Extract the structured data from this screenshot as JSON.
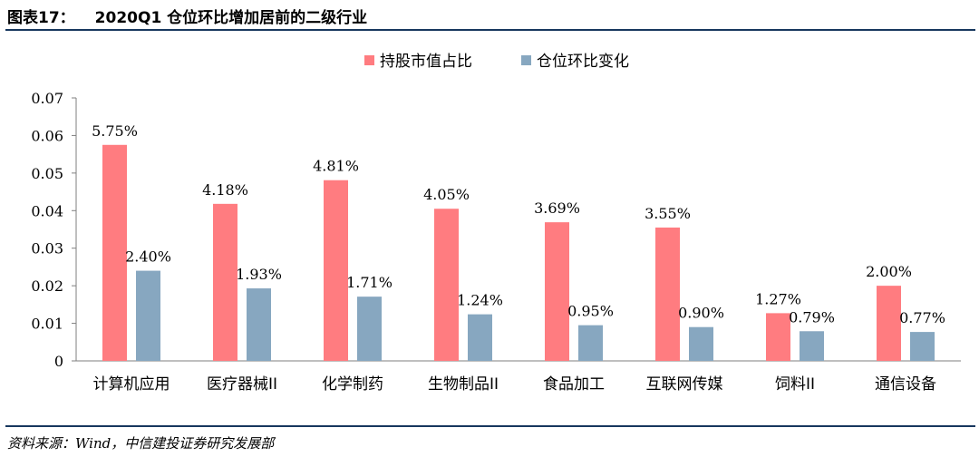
{
  "header": {
    "figure_no": "图表17：",
    "title": "2020Q1 仓位环比增加居前的二级行业"
  },
  "footer": {
    "source": "资料来源：Wind，中信建投证券研究发展部"
  },
  "colors": {
    "series1": "#ff7c80",
    "series2": "#87a7c0",
    "rule": "#17375e",
    "axis": "#7f7f7f"
  },
  "chart_data": {
    "type": "bar",
    "title": "",
    "xlabel": "",
    "ylabel": "",
    "categories": [
      "计算机应用",
      "医疗器械II",
      "化学制药",
      "生物制品II",
      "食品加工",
      "互联网传媒",
      "饲料II",
      "通信设备"
    ],
    "series": [
      {
        "name": "持股市值占比",
        "values": [
          0.0575,
          0.0418,
          0.0481,
          0.0405,
          0.0369,
          0.0355,
          0.0127,
          0.02
        ],
        "data_labels": [
          "5.75%",
          "4.18%",
          "4.81%",
          "4.05%",
          "3.69%",
          "3.55%",
          "1.27%",
          "2.00%"
        ]
      },
      {
        "name": "仓位环比变化",
        "values": [
          0.024,
          0.0193,
          0.0171,
          0.0124,
          0.0095,
          0.009,
          0.0079,
          0.0077
        ],
        "data_labels": [
          "2.40%",
          "1.93%",
          "1.71%",
          "1.24%",
          "0.95%",
          "0.90%",
          "0.79%",
          "0.77%"
        ]
      }
    ],
    "ylim": [
      0,
      0.07
    ],
    "yticks": [
      0,
      0.01,
      0.02,
      0.03,
      0.04,
      0.05,
      0.06,
      0.07
    ],
    "ytick_labels": [
      "0",
      "0.01",
      "0.02",
      "0.03",
      "0.04",
      "0.05",
      "0.06",
      "0.07"
    ],
    "grid": false,
    "legend": "top-center"
  }
}
